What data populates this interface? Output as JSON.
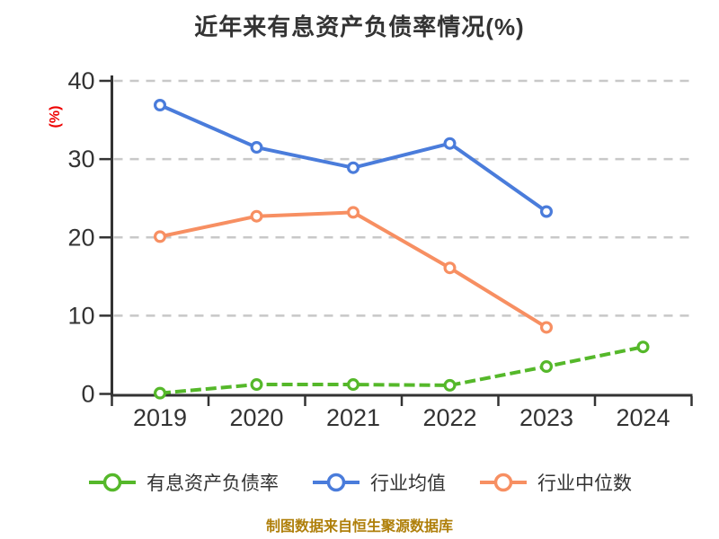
{
  "title": "近年来有息资产负债率情况(%)",
  "footer": "制图数据来自恒生聚源数据库",
  "footer_color": "#af7f0a",
  "colors": {
    "text": "#333333",
    "axis": "#333333",
    "gridline": "#c8c8c8",
    "background": "#ffffff"
  },
  "chart_data": {
    "type": "line",
    "title": "近年来有息资产负债率情况(%)",
    "categories": [
      "2019",
      "2020",
      "2021",
      "2022",
      "2023",
      "2024"
    ],
    "series": [
      {
        "name": "有息资产负债率",
        "color": "#55b82a",
        "style": "dashed",
        "values": [
          0.1,
          1.2,
          1.2,
          1.1,
          3.5,
          6.0
        ]
      },
      {
        "name": "行业均值",
        "color": "#4a7cdb",
        "style": "solid",
        "values": [
          36.9,
          31.5,
          28.9,
          32.0,
          23.3,
          null
        ]
      },
      {
        "name": "行业中位数",
        "color": "#f78f62",
        "style": "solid",
        "values": [
          20.1,
          22.7,
          23.2,
          16.1,
          8.5,
          null
        ]
      }
    ],
    "xlabel": "",
    "ylabel": "(%)",
    "ylabel_color": "#ee0000",
    "ylim": [
      0,
      40
    ],
    "yticks": [
      0,
      10,
      20,
      30,
      40
    ],
    "grid": "horizontal-dashed",
    "legend_position": "bottom",
    "marker": "circle-white-fill"
  }
}
